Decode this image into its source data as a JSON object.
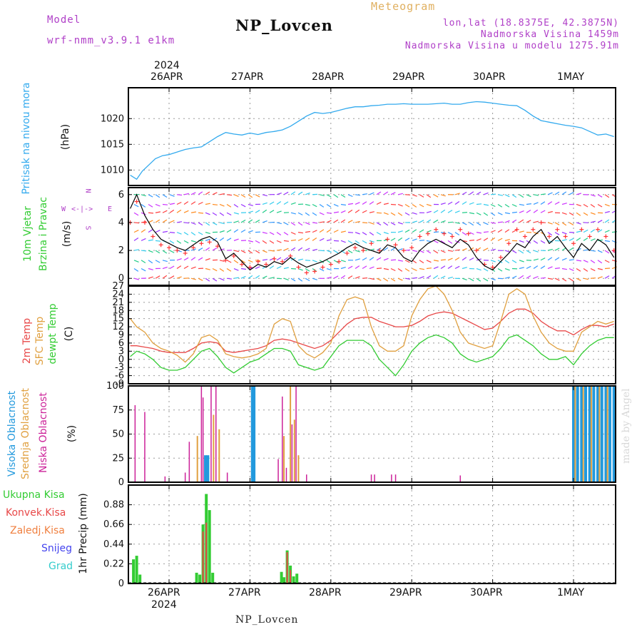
{
  "header": {
    "model_label": "Model",
    "model_name": "wrf-nmm_v3.9.1  e1km",
    "station": "NP_Lovcen",
    "product": "Meteogram",
    "coords": "lon,lat (18.8375E, 42.3875N)",
    "elevation": "Nadmorska Visina 1459m",
    "model_elevation": "Nadmorska Visina u modelu 1275.91m"
  },
  "footer": {
    "station": "NP_Lovcen",
    "credit": "made by Angel"
  },
  "dates": {
    "year": "2024",
    "labels": [
      "26APR",
      "27APR",
      "28APR",
      "29APR",
      "30APR",
      "1MAY"
    ]
  },
  "panel_labels": {
    "pressure": [
      "Pritisak na nivou mora",
      "(hPa)"
    ],
    "wind": [
      "10m Vjetar",
      "Brzina i Pravac",
      "(m/s)"
    ],
    "wind_rose": {
      "n": "N",
      "s": "S",
      "e": "E",
      "w": "W"
    },
    "temp": [
      "2m Temp",
      "SFC Temp",
      "dewpt Temp",
      "(C)"
    ],
    "cloud": [
      "Visoka Oblacnost",
      "Srednja Oblacnost",
      "Niska Oblacnost",
      "(%)"
    ],
    "precip": [
      "Ukupna Kisa",
      "Konvek.Kisa",
      "Zaledj.Kisa",
      "Snijeg",
      "Grad",
      "1hr Precip (mm)"
    ]
  },
  "colors": {
    "pressure": "#33aaee",
    "temp2m": "#e84848",
    "sfc": "#e0a040",
    "dewpt": "#33cc33",
    "high_cloud": "#2299dd",
    "mid_cloud": "#e0a040",
    "low_cloud": "#cc2299",
    "total_rain": "#33cc33",
    "conv_rain": "#e84848",
    "frz_rain": "#f08040",
    "snow": "#4444ee",
    "hail": "#33cccc",
    "wind_label": "#33cc33",
    "rose": "#b040c8"
  },
  "chart_data": [
    {
      "type": "line",
      "panel": "pressure",
      "ylabel": "(hPa)",
      "ylim": [
        1007,
        1026
      ],
      "yticks": [
        1010,
        1015,
        1020
      ],
      "grid": true,
      "x": [
        -0.48,
        -0.4,
        -0.33,
        -0.25,
        -0.17,
        -0.08,
        0.0,
        0.1,
        0.2,
        0.3,
        0.4,
        0.5,
        0.6,
        0.7,
        0.8,
        0.9,
        1.0,
        1.1,
        1.2,
        1.3,
        1.4,
        1.5,
        1.6,
        1.7,
        1.8,
        1.9,
        2.0,
        2.1,
        2.2,
        2.3,
        2.4,
        2.5,
        2.6,
        2.7,
        2.8,
        2.9,
        3.0,
        3.1,
        3.2,
        3.3,
        3.4,
        3.5,
        3.6,
        3.7,
        3.8,
        3.9,
        4.0,
        4.1,
        4.2,
        4.3,
        4.4,
        4.5,
        4.6,
        4.7,
        4.8,
        4.9,
        5.0,
        5.1,
        5.2,
        5.3,
        5.4,
        5.5
      ],
      "series": [
        {
          "values": [
            1009,
            1008.2,
            1009.8,
            1011,
            1012.2,
            1012.8,
            1013.0,
            1013.5,
            1014.0,
            1014.3,
            1014.5,
            1015.5,
            1016.5,
            1017.3,
            1017.0,
            1016.8,
            1017.2,
            1016.9,
            1017.3,
            1017.5,
            1017.8,
            1018.5,
            1019.5,
            1020.5,
            1021.2,
            1021.0,
            1021.2,
            1021.6,
            1022.0,
            1022.3,
            1022.3,
            1022.5,
            1022.6,
            1022.8,
            1022.8,
            1022.9,
            1022.8,
            1022.8,
            1022.8,
            1022.9,
            1023.0,
            1022.8,
            1022.8,
            1023.1,
            1023.3,
            1023.2,
            1023.0,
            1022.8,
            1022.6,
            1022.5,
            1021.6,
            1020.5,
            1019.6,
            1019.3,
            1019.0,
            1018.7,
            1018.5,
            1018.2,
            1017.5,
            1016.8,
            1017.0,
            1016.5
          ]
        }
      ]
    },
    {
      "type": "line",
      "panel": "wind",
      "ylabel": "(m/s)",
      "ylim": [
        -0.5,
        6.5
      ],
      "yticks": [
        0,
        2,
        4,
        6
      ],
      "grid": true,
      "x": [
        -0.48,
        -0.4,
        -0.3,
        -0.2,
        -0.1,
        0.0,
        0.1,
        0.2,
        0.3,
        0.4,
        0.5,
        0.6,
        0.7,
        0.8,
        0.9,
        1.0,
        1.1,
        1.2,
        1.3,
        1.4,
        1.5,
        1.6,
        1.7,
        1.8,
        1.9,
        2.0,
        2.1,
        2.2,
        2.3,
        2.4,
        2.5,
        2.6,
        2.7,
        2.8,
        2.9,
        3.0,
        3.1,
        3.2,
        3.3,
        3.4,
        3.5,
        3.6,
        3.7,
        3.8,
        3.9,
        4.0,
        4.1,
        4.2,
        4.3,
        4.4,
        4.5,
        4.6,
        4.7,
        4.8,
        4.9,
        5.0,
        5.1,
        5.2,
        5.3,
        5.4,
        5.5
      ],
      "series": [
        {
          "name": "speed",
          "values": [
            5.0,
            6.0,
            4.5,
            3.5,
            2.8,
            2.5,
            2.2,
            2.0,
            2.4,
            2.8,
            3.0,
            2.6,
            1.4,
            1.8,
            1.2,
            0.6,
            1.0,
            0.8,
            1.2,
            1.0,
            1.5,
            1.1,
            0.8,
            1.0,
            1.2,
            1.5,
            1.8,
            2.2,
            2.5,
            2.2,
            2.0,
            1.8,
            2.4,
            2.2,
            1.5,
            1.2,
            2.0,
            2.5,
            2.8,
            2.5,
            2.2,
            2.8,
            2.4,
            1.5,
            0.9,
            0.6,
            1.2,
            1.8,
            2.5,
            2.2,
            3.0,
            3.5,
            2.5,
            3.0,
            2.2,
            1.5,
            2.5,
            2.0,
            2.8,
            2.4,
            1.5
          ]
        },
        {
          "name": "gust",
          "values": [
            4.0,
            5.5,
            4.0,
            3.0,
            2.4,
            2.2,
            2.0,
            1.8,
            2.2,
            2.5,
            2.6,
            2.3,
            1.3,
            1.6,
            1.0,
            0.8,
            1.2,
            1.0,
            1.4,
            1.2,
            1.6,
            0.8,
            0.4,
            0.5,
            0.8,
            1.0,
            1.2,
            1.8,
            2.2,
            2.0,
            2.5,
            2.0,
            2.8,
            2.4,
            2.0,
            2.2,
            3.0,
            3.2,
            3.5,
            3.2,
            3.0,
            3.5,
            3.2,
            2.0,
            1.0,
            0.8,
            1.5,
            2.5,
            3.5,
            3.0,
            3.5,
            4.0,
            3.0,
            3.5,
            3.0,
            2.5,
            3.5,
            3.0,
            3.5,
            3.0,
            2.0
          ]
        }
      ]
    },
    {
      "type": "line",
      "panel": "temperature",
      "ylabel": "(C)",
      "ylim": [
        -9,
        27
      ],
      "yticks": [
        -9,
        -6,
        -3,
        0,
        3,
        6,
        9,
        12,
        15,
        18,
        21,
        24,
        27
      ],
      "grid": true,
      "x": [
        -0.48,
        -0.4,
        -0.3,
        -0.2,
        -0.1,
        0.0,
        0.1,
        0.2,
        0.3,
        0.4,
        0.5,
        0.6,
        0.7,
        0.8,
        0.9,
        1.0,
        1.1,
        1.2,
        1.3,
        1.4,
        1.5,
        1.6,
        1.7,
        1.8,
        1.9,
        2.0,
        2.1,
        2.2,
        2.3,
        2.4,
        2.5,
        2.6,
        2.7,
        2.8,
        2.9,
        3.0,
        3.1,
        3.2,
        3.3,
        3.4,
        3.5,
        3.6,
        3.7,
        3.8,
        3.9,
        4.0,
        4.1,
        4.2,
        4.3,
        4.4,
        4.5,
        4.6,
        4.7,
        4.8,
        4.9,
        5.0,
        5.1,
        5.2,
        5.3,
        5.4,
        5.5
      ],
      "series": [
        {
          "name": "2m",
          "values": [
            5,
            5,
            4.5,
            4,
            3,
            2.5,
            2.5,
            2.5,
            4,
            6,
            6.5,
            6,
            3,
            2.5,
            3,
            3.5,
            4,
            5,
            7,
            7.5,
            7,
            6,
            5,
            4,
            5,
            7,
            10,
            13,
            15,
            15.5,
            15.5,
            14,
            13,
            12,
            12,
            12.5,
            14,
            16,
            17,
            17.5,
            17,
            15.5,
            14,
            12.5,
            11,
            11.5,
            14,
            17,
            18.5,
            18.5,
            17,
            14,
            12,
            10.5,
            10.5,
            9,
            11,
            12.5,
            12.5,
            12,
            13
          ]
        },
        {
          "name": "sfc",
          "values": [
            15,
            12,
            10,
            6,
            4,
            3,
            1.5,
            -1,
            2,
            8,
            9,
            7,
            2,
            1,
            0.5,
            1,
            2,
            4,
            13,
            15,
            14,
            5,
            2,
            0.5,
            2.5,
            6,
            16,
            22,
            23,
            22,
            12,
            5,
            3,
            3,
            5,
            16,
            22,
            26,
            27,
            24,
            18,
            10,
            6,
            5,
            4,
            5,
            14,
            24,
            26,
            24,
            16,
            10,
            6,
            4,
            3,
            3,
            10,
            12,
            14,
            13,
            14
          ]
        },
        {
          "name": "dewpt",
          "values": [
            1,
            3,
            2,
            0,
            -3,
            -4,
            -4,
            -3,
            0,
            3,
            4,
            1,
            -3,
            -5,
            -3,
            -1,
            0,
            2,
            4,
            4,
            3,
            -2,
            -3,
            -4,
            -3,
            1,
            5,
            7,
            7,
            7,
            5,
            0,
            -3,
            -6,
            -2,
            3,
            6,
            8,
            9,
            8,
            6,
            2,
            0,
            -1,
            0,
            1,
            4,
            8,
            9,
            7,
            5,
            2,
            0,
            0,
            1,
            -2,
            2,
            5,
            7,
            8,
            8
          ]
        }
      ]
    },
    {
      "type": "bar",
      "panel": "cloud",
      "ylabel": "(%)",
      "ylim": [
        0,
        100
      ],
      "yticks": [
        0,
        25,
        50,
        75,
        100
      ],
      "grid": true,
      "series": [
        {
          "name": "high",
          "points": [
            [
              0.45,
              28
            ],
            [
              0.48,
              28
            ],
            [
              1.03,
              100
            ],
            [
              1.05,
              100
            ],
            [
              5.0,
              100
            ],
            [
              5.05,
              100
            ],
            [
              5.1,
              100
            ],
            [
              5.15,
              100
            ],
            [
              5.2,
              100
            ],
            [
              5.25,
              100
            ],
            [
              5.3,
              100
            ],
            [
              5.35,
              100
            ],
            [
              5.4,
              100
            ],
            [
              5.45,
              100
            ],
            [
              5.5,
              100
            ]
          ]
        },
        {
          "name": "mid",
          "points": [
            [
              0.35,
              48
            ],
            [
              0.55,
              70
            ],
            [
              0.62,
              55
            ],
            [
              1.42,
              48
            ],
            [
              1.5,
              100
            ],
            [
              1.55,
              65
            ],
            [
              1.6,
              28
            ],
            [
              5.02,
              100
            ],
            [
              5.12,
              100
            ],
            [
              5.22,
              100
            ],
            [
              5.32,
              100
            ],
            [
              5.42,
              100
            ],
            [
              5.52,
              65
            ]
          ]
        },
        {
          "name": "low",
          "points": [
            [
              -0.42,
              80
            ],
            [
              -0.3,
              73
            ],
            [
              -0.05,
              6
            ],
            [
              0.2,
              10
            ],
            [
              0.25,
              42
            ],
            [
              0.4,
              100
            ],
            [
              0.42,
              88
            ],
            [
              0.52,
              100
            ],
            [
              0.58,
              100
            ],
            [
              0.72,
              10
            ],
            [
              1.35,
              24
            ],
            [
              1.4,
              89
            ],
            [
              1.45,
              15
            ],
            [
              1.52,
              60
            ],
            [
              1.57,
              100
            ],
            [
              1.7,
              8
            ],
            [
              2.5,
              8
            ],
            [
              2.54,
              8
            ],
            [
              2.75,
              8
            ],
            [
              2.8,
              8
            ],
            [
              3.6,
              7
            ]
          ]
        }
      ]
    },
    {
      "type": "bar",
      "panel": "precip",
      "ylabel": "1hr Precip (mm)",
      "ylim": [
        0,
        1.1
      ],
      "yticks": [
        0,
        0.22,
        0.44,
        0.66,
        0.88
      ],
      "grid": true,
      "series": [
        {
          "name": "total",
          "points": [
            [
              -0.44,
              0.27
            ],
            [
              -0.4,
              0.31
            ],
            [
              -0.36,
              0.1
            ],
            [
              0.34,
              0.12
            ],
            [
              0.38,
              0.1
            ],
            [
              0.42,
              0.66
            ],
            [
              0.46,
              1.0
            ],
            [
              0.5,
              0.82
            ],
            [
              0.54,
              0.12
            ],
            [
              1.39,
              0.13
            ],
            [
              1.42,
              0.07
            ],
            [
              1.46,
              0.37
            ],
            [
              1.5,
              0.2
            ],
            [
              1.54,
              0.08
            ],
            [
              1.58,
              0.11
            ]
          ]
        },
        {
          "name": "conv",
          "points": [
            [
              0.42,
              0.58
            ],
            [
              0.46,
              0.68
            ],
            [
              1.46,
              0.35
            ],
            [
              1.5,
              0.15
            ]
          ]
        }
      ]
    }
  ]
}
